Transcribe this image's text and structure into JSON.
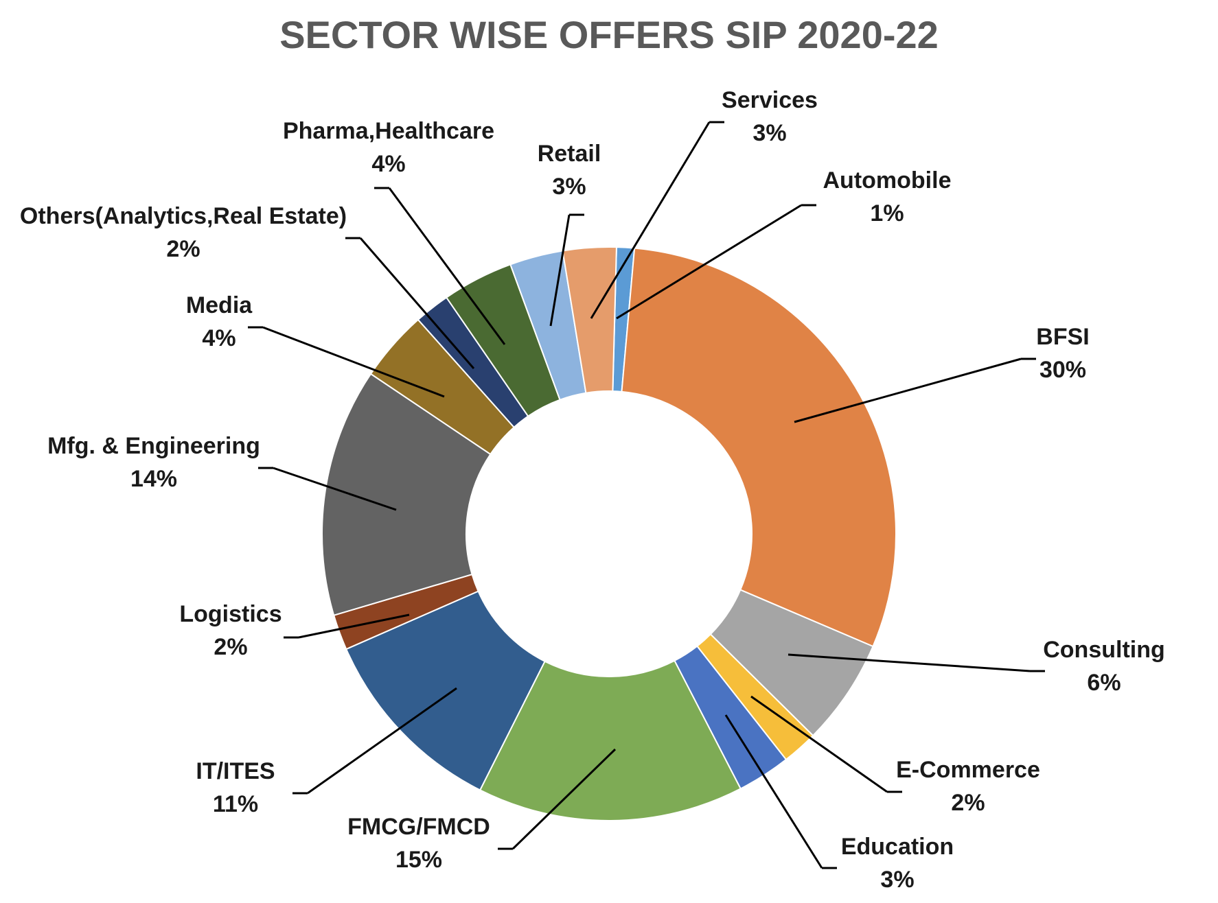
{
  "chart_data": {
    "type": "pie",
    "variant": "donut",
    "title": "SECTOR WISE OFFERS SIP 2020-22",
    "slices": [
      {
        "label": "Automobile",
        "value": 1,
        "value_label": "1%",
        "color": "#5B9BD5"
      },
      {
        "label": "BFSI",
        "value": 30,
        "value_label": "30%",
        "color": "#E08346"
      },
      {
        "label": "Consulting",
        "value": 6,
        "value_label": "6%",
        "color": "#A5A5A5"
      },
      {
        "label": "E-Commerce",
        "value": 2,
        "value_label": "2%",
        "color": "#F6BE3A"
      },
      {
        "label": "Education",
        "value": 3,
        "value_label": "3%",
        "color": "#4A73C2"
      },
      {
        "label": "FMCG/FMCD",
        "value": 15,
        "value_label": "15%",
        "color": "#7EAB55"
      },
      {
        "label": "IT/ITES",
        "value": 11,
        "value_label": "11%",
        "color": "#325D8E"
      },
      {
        "label": "Logistics",
        "value": 2,
        "value_label": "2%",
        "color": "#8E4321"
      },
      {
        "label": "Mfg. & Engineering",
        "value": 14,
        "value_label": "14%",
        "color": "#636363"
      },
      {
        "label": "Media",
        "value": 4,
        "value_label": "4%",
        "color": "#937126"
      },
      {
        "label": "Others(Analytics,Real Estate)",
        "value": 2,
        "value_label": "2%",
        "color": "#29406F"
      },
      {
        "label": "Pharma,Healthcare",
        "value": 4,
        "value_label": "4%",
        "color": "#4A6A32"
      },
      {
        "label": "Retail",
        "value": 3,
        "value_label": "3%",
        "color": "#8DB3DE"
      },
      {
        "label": "Services",
        "value": 3,
        "value_label": "3%",
        "color": "#E59C6B"
      }
    ],
    "legend": "none",
    "data_labels": "outside with leader lines"
  }
}
